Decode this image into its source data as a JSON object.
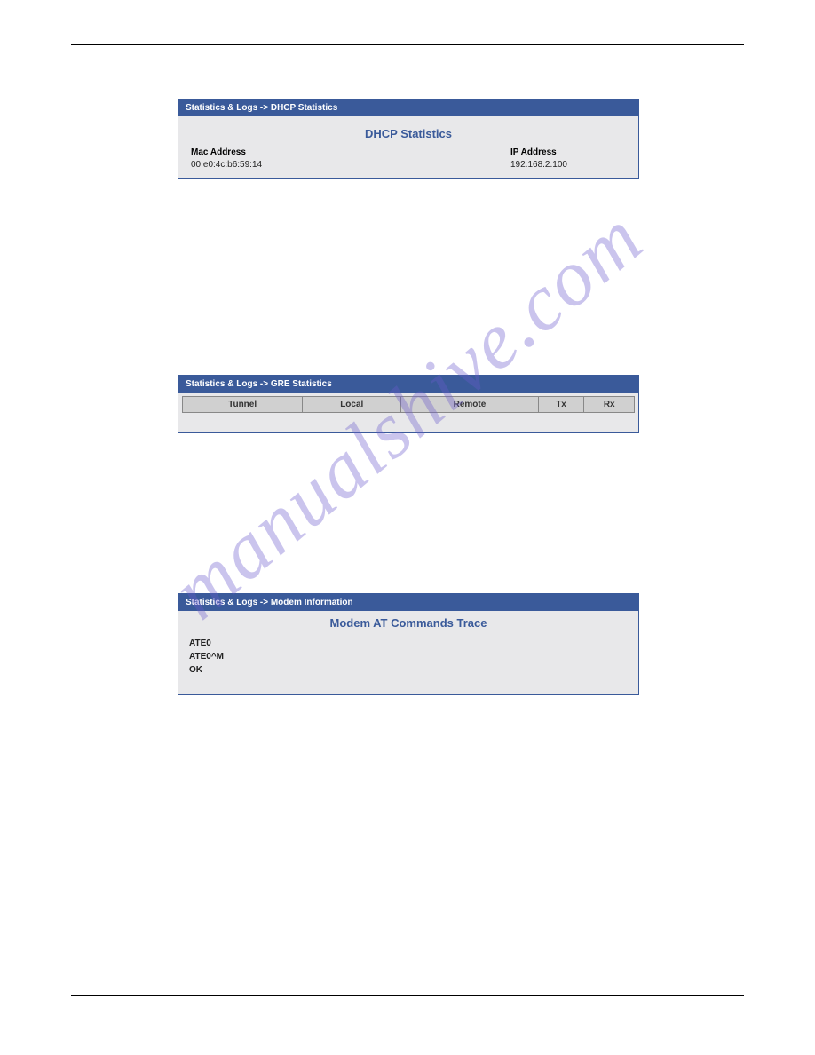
{
  "watermark": {
    "text": "manualshive.com",
    "color": "#6a5acd",
    "opacity": 0.35,
    "fontsize": 90,
    "rotation_deg": -40
  },
  "colors": {
    "panel_border": "#3a5a9a",
    "panel_header_bg": "#3a5a9a",
    "panel_header_fg": "#ffffff",
    "panel_body_bg": "#e8e8ea",
    "title_fg": "#3a5a9a",
    "table_header_bg": "#d0d0d0",
    "table_border": "#888888",
    "rule": "#000000",
    "page_bg": "#ffffff"
  },
  "panels": {
    "dhcp": {
      "breadcrumb": "Statistics & Logs  ->  DHCP Statistics",
      "title": "DHCP Statistics",
      "columns": {
        "mac": "Mac Address",
        "ip": "IP Address"
      },
      "rows": [
        {
          "mac": "00:e0:4c:b6:59:14",
          "ip": "192.168.2.100"
        }
      ]
    },
    "gre": {
      "breadcrumb": "Statistics & Logs  ->  GRE Statistics",
      "table": {
        "columns": [
          "Tunnel",
          "Local",
          "Remote",
          "Tx",
          "Rx"
        ],
        "rows": []
      }
    },
    "modem": {
      "breadcrumb": "Statistics & Logs  ->  Modem Information",
      "title": "Modem AT Commands Trace",
      "lines": [
        "ATE0",
        "ATE0^M",
        "OK"
      ]
    }
  }
}
